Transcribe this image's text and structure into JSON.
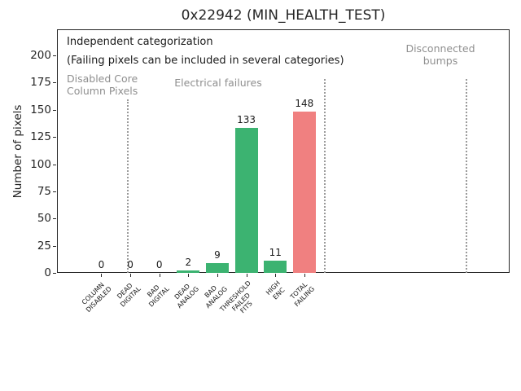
{
  "chart_data": {
    "type": "bar",
    "title": "0x22942 (MIN_HEALTH_TEST)",
    "ylabel": "Number of pixels",
    "xlabel": "",
    "categories": [
      "COLUMN\nDISABLED",
      "DEAD\nDIGITAL",
      "BAD\nDIGITAL",
      "DEAD\nANALOG",
      "BAD\nANALOG",
      "THRESHOLD\nFAILED\nFITS",
      "HIGH\nENC",
      "TOTAL\nFAILING"
    ],
    "values": [
      0,
      0,
      0,
      2,
      9,
      133,
      11,
      148
    ],
    "bar_colors": [
      "#3cb371",
      "#3cb371",
      "#3cb371",
      "#3cb371",
      "#3cb371",
      "#3cb371",
      "#3cb371",
      "#f08080"
    ],
    "value_labels": [
      "0",
      "0",
      "0",
      "2",
      "9",
      "133",
      "11",
      "148"
    ],
    "yticks": [
      0,
      25,
      50,
      75,
      100,
      125,
      150,
      175,
      200
    ],
    "ylim": [
      0,
      224
    ],
    "xlim_index": [
      -1.53,
      14.08
    ],
    "grid": false,
    "legend": null,
    "annotations": {
      "note_line1": "Independent categorization",
      "note_line2": "(Failing pixels can be included in several categories)",
      "group_labels": [
        {
          "text": "Disabled Core\nColumn Pixels"
        },
        {
          "text": "Electrical failures"
        },
        {
          "text": "Disconnected\nbumps"
        }
      ]
    },
    "separators_x_index": [
      0.91,
      7.71,
      12.6
    ],
    "colors": {
      "bar_green": "#3cb371",
      "bar_red": "#f08080",
      "muted_text": "#8f8f8f",
      "separator": "#9a9a9a",
      "axis": "#262626"
    }
  }
}
